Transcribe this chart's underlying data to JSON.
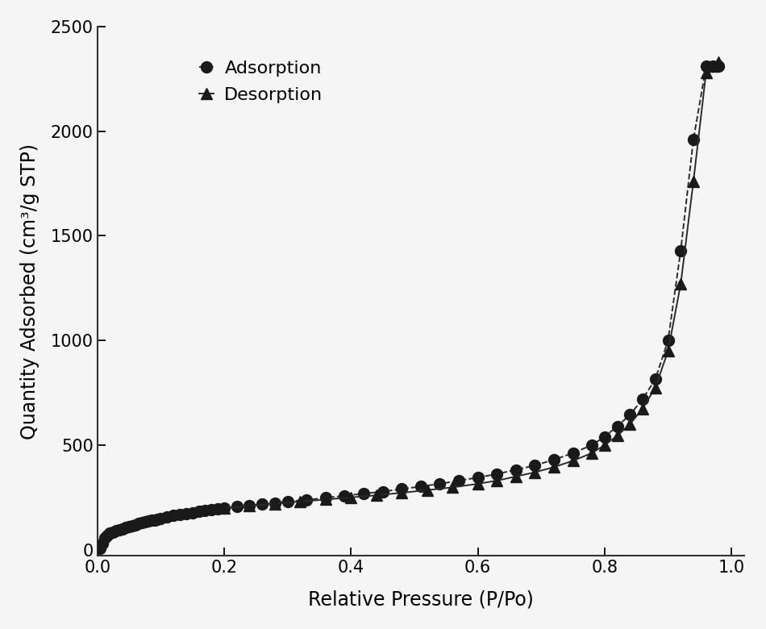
{
  "adsorption_x": [
    0.004,
    0.008,
    0.012,
    0.016,
    0.02,
    0.025,
    0.03,
    0.035,
    0.04,
    0.045,
    0.05,
    0.055,
    0.06,
    0.065,
    0.07,
    0.075,
    0.08,
    0.085,
    0.09,
    0.095,
    0.1,
    0.11,
    0.12,
    0.13,
    0.14,
    0.15,
    0.16,
    0.17,
    0.18,
    0.19,
    0.2,
    0.22,
    0.24,
    0.26,
    0.28,
    0.3,
    0.33,
    0.36,
    0.39,
    0.42,
    0.45,
    0.48,
    0.51,
    0.54,
    0.57,
    0.6,
    0.63,
    0.66,
    0.69,
    0.72,
    0.75,
    0.78,
    0.8,
    0.82,
    0.84,
    0.86,
    0.88,
    0.9,
    0.92,
    0.94,
    0.96,
    0.97,
    0.98
  ],
  "adsorption_y": [
    5,
    30,
    55,
    68,
    78,
    85,
    90,
    95,
    100,
    105,
    110,
    115,
    120,
    125,
    130,
    133,
    136,
    140,
    143,
    147,
    150,
    157,
    163,
    168,
    173,
    178,
    182,
    186,
    190,
    194,
    198,
    205,
    212,
    218,
    224,
    230,
    238,
    248,
    258,
    268,
    278,
    290,
    302,
    315,
    330,
    345,
    362,
    382,
    403,
    430,
    462,
    500,
    540,
    590,
    645,
    720,
    815,
    1000,
    1430,
    1960,
    2310,
    2310,
    2310
  ],
  "desorption_x": [
    0.2,
    0.24,
    0.28,
    0.32,
    0.36,
    0.4,
    0.44,
    0.48,
    0.52,
    0.56,
    0.6,
    0.63,
    0.66,
    0.69,
    0.72,
    0.75,
    0.78,
    0.8,
    0.82,
    0.84,
    0.86,
    0.88,
    0.9,
    0.92,
    0.94,
    0.96,
    0.97,
    0.98
  ],
  "desorption_y": [
    198,
    210,
    220,
    230,
    240,
    250,
    260,
    272,
    285,
    298,
    315,
    330,
    350,
    370,
    395,
    425,
    462,
    500,
    545,
    600,
    675,
    775,
    950,
    1270,
    1760,
    2280,
    2310,
    2330
  ],
  "xlabel": "Relative Pressure (P/Po)",
  "ylabel": "Quantity Adsorbed (cm³/g STP)",
  "xlim": [
    0.0,
    1.02
  ],
  "ylim": [
    -30,
    2500
  ],
  "yticks": [
    0,
    500,
    1000,
    1500,
    2000,
    2500
  ],
  "xticks": [
    0.0,
    0.2,
    0.4,
    0.6,
    0.8,
    1.0
  ],
  "legend_adsorption": "Adsorption",
  "legend_desorption": "Desorption",
  "line_color": "#2a2a2a",
  "marker_color": "#1a1a1a",
  "background_color": "#f5f5f5",
  "label_fontsize": 17,
  "tick_fontsize": 15,
  "legend_fontsize": 16,
  "marker_size": 10,
  "line_width": 1.4
}
